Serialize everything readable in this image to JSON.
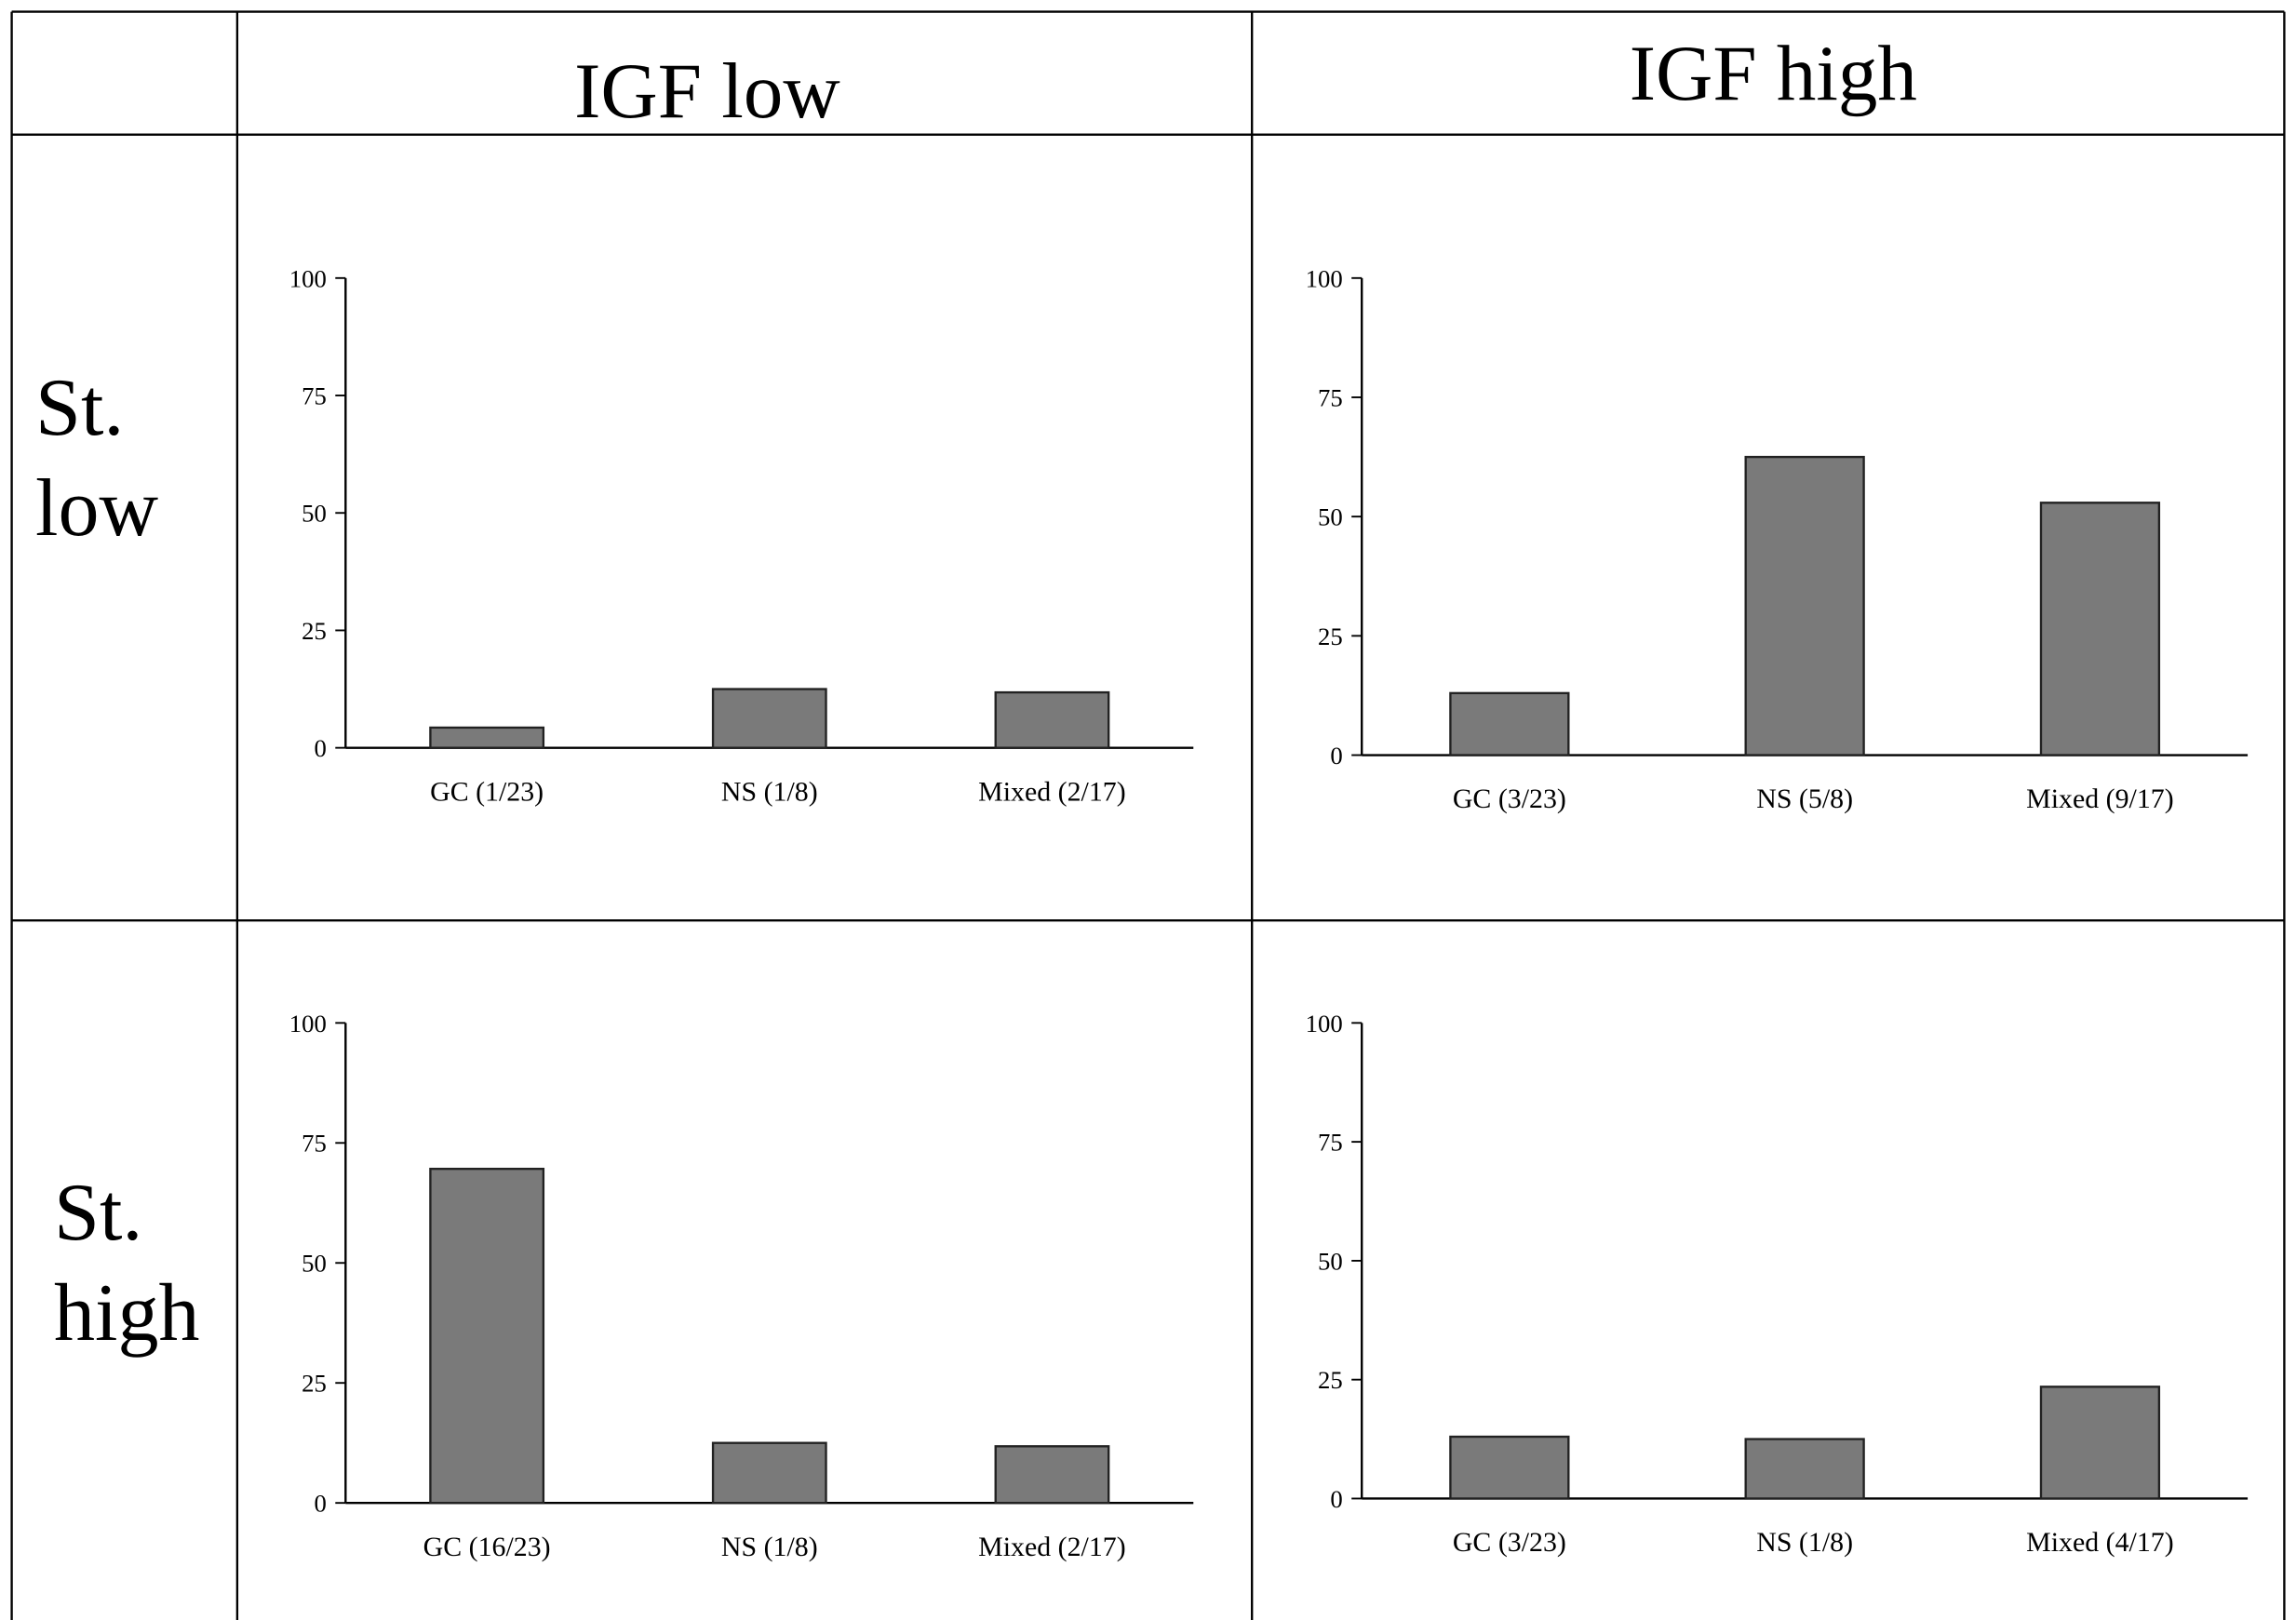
{
  "table": {
    "columns": [
      "IGF low",
      "IGF high"
    ],
    "rows": [
      "St. low",
      "St. high"
    ]
  },
  "chart_data": [
    {
      "type": "bar",
      "categories": [
        "GC (1/23)",
        "NS (1/8)",
        "Mixed (2/17)"
      ],
      "values": [
        4.3,
        12.5,
        11.8
      ],
      "color": "#7a7a7a",
      "ylim": [
        0,
        100
      ],
      "yticks": [
        0,
        25,
        50,
        75,
        100
      ]
    },
    {
      "type": "bar",
      "categories": [
        "GC (3/23)",
        "NS (5/8)",
        "Mixed (9/17)"
      ],
      "values": [
        13,
        62.5,
        52.9
      ],
      "color": "#7a7a7a",
      "ylim": [
        0,
        100
      ],
      "yticks": [
        0,
        25,
        50,
        75,
        100
      ]
    },
    {
      "type": "bar",
      "categories": [
        "GC (16/23)",
        "NS (1/8)",
        "Mixed (2/17)"
      ],
      "values": [
        69.6,
        12.5,
        11.8
      ],
      "color": "#7a7a7a",
      "ylim": [
        0,
        100
      ],
      "yticks": [
        0,
        25,
        50,
        75,
        100
      ]
    },
    {
      "type": "bar",
      "categories": [
        "GC (3/23)",
        "NS (1/8)",
        "Mixed (4/17)"
      ],
      "values": [
        13,
        12.5,
        23.5
      ],
      "color": "#7a7a7a",
      "ylim": [
        0,
        100
      ],
      "yticks": [
        0,
        25,
        50,
        75,
        100
      ]
    }
  ]
}
